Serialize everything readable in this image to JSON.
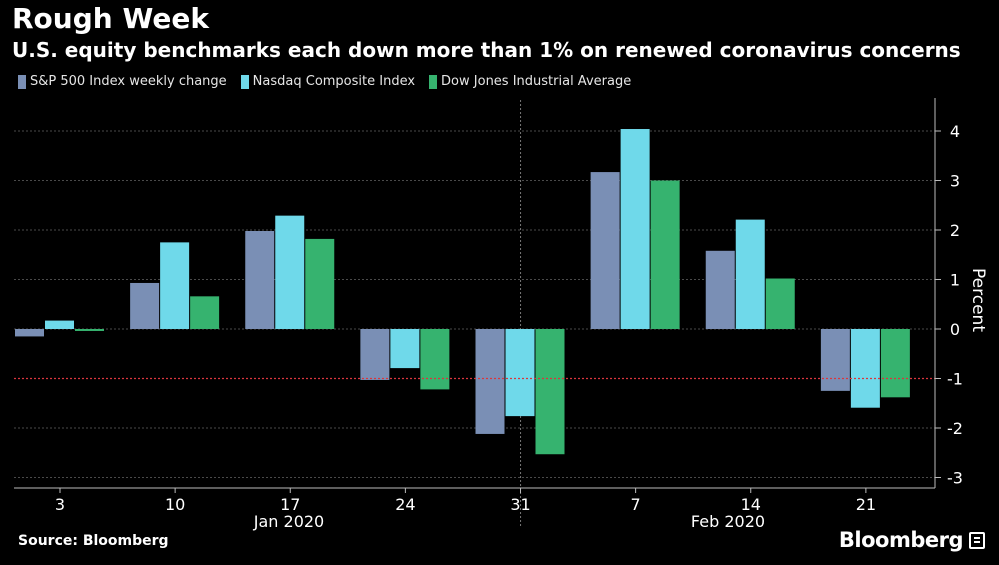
{
  "chart_data": {
    "type": "bar",
    "title": "Rough Week",
    "subtitle": "U.S. equity benchmarks each down more than 1% on renewed coronavirus concerns",
    "categories": [
      "3",
      "10",
      "17",
      "24",
      "31",
      "7",
      "14",
      "21"
    ],
    "month_labels": [
      "Jan 2020",
      "Feb 2020"
    ],
    "series": [
      {
        "name": "S&P 500 Index weekly change",
        "color": "#7a8fb5",
        "values": [
          -0.15,
          0.93,
          1.98,
          -1.03,
          -2.12,
          3.17,
          1.58,
          -1.25
        ]
      },
      {
        "name": "Nasdaq Composite Index",
        "color": "#6fd9ea",
        "values": [
          0.17,
          1.75,
          2.29,
          -0.79,
          -1.76,
          4.04,
          2.21,
          -1.59
        ]
      },
      {
        "name": "Dow Jones Industrial Average",
        "color": "#36b36f",
        "values": [
          -0.04,
          0.66,
          1.82,
          -1.22,
          -2.53,
          3.0,
          1.02,
          -1.38
        ]
      }
    ],
    "ylabel": "Percent",
    "ylim": [
      -3.3,
      4.6
    ],
    "yticks": [
      4,
      3,
      2,
      1,
      0,
      -1,
      -2,
      -3
    ],
    "reference_line": -1,
    "reference_color": "#d9363e",
    "grid": true,
    "axis_position": "right"
  },
  "footer": {
    "source": "Source: Bloomberg",
    "brand": "Bloomberg"
  }
}
